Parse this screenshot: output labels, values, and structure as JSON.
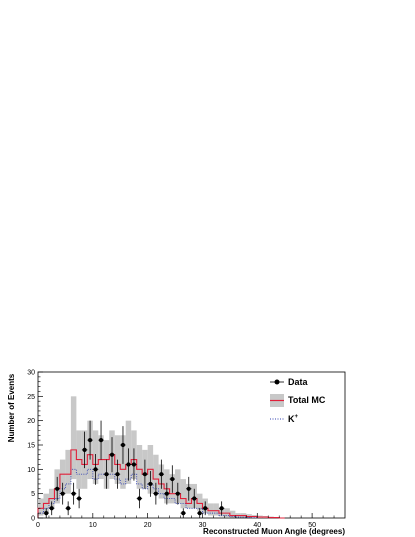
{
  "chart_data": {
    "type": "histogram",
    "xlabel": "Reconstructed Muon Angle (degrees)",
    "ylabel": "Number of Events",
    "xlim": [
      0,
      56
    ],
    "ylim": [
      0,
      30
    ],
    "x_ticks": [
      0,
      10,
      20,
      30,
      40,
      50
    ],
    "y_ticks": [
      0,
      5,
      10,
      15,
      20,
      25,
      30
    ],
    "bin_width": 1,
    "grid": false,
    "legend_position": "top-right",
    "legend": {
      "data_label": "Data",
      "total_mc_label": "Total MC",
      "kstar_label": "K",
      "kstar_superscript": "+"
    },
    "colors": {
      "data": "#000000",
      "total_mc": "#e0203a",
      "total_mc_band": "#c8c8c8",
      "kstar": "#3040b0"
    },
    "series": [
      {
        "name": "Data",
        "style": "points",
        "x": [
          1.5,
          2.5,
          3.5,
          4.5,
          5.5,
          6.5,
          7.5,
          8.5,
          9.5,
          10.5,
          11.5,
          12.5,
          13.5,
          14.5,
          15.5,
          16.5,
          17.5,
          18.5,
          19.5,
          20.5,
          21.5,
          22.5,
          23.5,
          24.5,
          25.5,
          26.5,
          27.5,
          28.5,
          29.5,
          30.5,
          31.5,
          33.5
        ],
        "y": [
          1,
          2,
          6,
          5,
          2,
          5,
          4,
          14,
          16,
          10,
          16,
          9,
          13,
          9,
          15,
          11,
          11,
          4,
          9,
          7,
          5,
          9,
          5,
          8,
          5,
          1,
          6,
          4,
          1,
          2,
          0,
          2
        ]
      },
      {
        "name": "Total MC",
        "style": "step",
        "x_edges": [
          0,
          1,
          2,
          3,
          4,
          5,
          6,
          7,
          8,
          9,
          10,
          11,
          12,
          13,
          14,
          15,
          16,
          17,
          18,
          19,
          20,
          21,
          22,
          23,
          24,
          25,
          26,
          27,
          28,
          29,
          30,
          31,
          32,
          33,
          34,
          35,
          36,
          37,
          38,
          39,
          40,
          41,
          42,
          43,
          44,
          45
        ],
        "values": [
          2,
          3,
          4,
          6,
          9,
          9,
          14,
          12,
          11,
          13,
          11,
          12,
          12,
          13,
          11,
          10,
          11,
          12,
          10,
          9,
          10,
          8,
          7,
          6,
          5,
          5,
          4,
          3,
          4,
          3,
          2,
          1.5,
          1.5,
          1,
          1,
          0.5,
          0.5,
          0.5,
          0.3,
          0.3,
          0.2,
          0.2,
          0.1,
          0.1,
          0
        ]
      },
      {
        "name": "Total MC uncertainty",
        "style": "band",
        "x_edges": [
          0,
          1,
          2,
          3,
          4,
          5,
          6,
          7,
          8,
          9,
          10,
          11,
          12,
          13,
          14,
          15,
          16,
          17,
          18,
          19,
          20,
          21,
          22,
          23,
          24,
          25,
          26,
          27,
          28,
          29,
          30,
          31,
          32,
          33,
          34,
          35,
          36,
          37,
          38,
          39,
          40,
          41,
          42,
          43,
          44,
          45
        ],
        "lower": [
          0.5,
          1,
          2,
          3,
          5,
          5,
          8,
          6,
          6,
          8,
          7,
          8,
          6,
          8,
          7,
          6,
          7,
          8,
          6,
          6,
          5,
          5,
          4,
          3,
          3,
          3,
          2,
          2,
          2,
          1.5,
          1,
          0.5,
          0.5,
          0.3,
          0.2,
          0.1,
          0.1,
          0.1,
          0.1,
          0,
          0,
          0,
          0,
          0,
          0
        ],
        "upper": [
          4,
          5,
          6,
          10,
          12,
          14,
          25,
          18,
          18,
          20,
          18,
          17,
          16,
          18,
          17,
          17,
          20,
          18,
          15,
          14,
          15,
          13,
          11,
          10,
          9,
          10,
          8,
          7,
          7,
          5,
          4,
          3,
          3,
          2,
          2,
          1.5,
          1,
          1,
          0.8,
          0.6,
          0.5,
          0.4,
          0.3,
          0.2,
          0
        ]
      },
      {
        "name": "K+",
        "style": "step-dotted",
        "x_edges": [
          0,
          1,
          2,
          3,
          4,
          5,
          6,
          7,
          8,
          9,
          10,
          11,
          12,
          13,
          14,
          15,
          16,
          17,
          18,
          19,
          20,
          21,
          22,
          23,
          24,
          25,
          26,
          27,
          28,
          29,
          30,
          31,
          32,
          33,
          34,
          35,
          36,
          37,
          38,
          39,
          40
        ],
        "values": [
          1,
          2,
          3,
          4,
          6,
          7,
          10,
          9,
          9,
          10,
          8,
          9,
          9,
          9,
          8,
          7,
          8,
          9,
          7,
          6,
          7,
          6,
          5,
          4,
          4,
          3,
          3,
          2,
          2,
          2,
          1,
          1,
          1,
          0.5,
          0.5,
          0.3,
          0.2,
          0.2,
          0.1,
          0.1
        ]
      }
    ]
  }
}
